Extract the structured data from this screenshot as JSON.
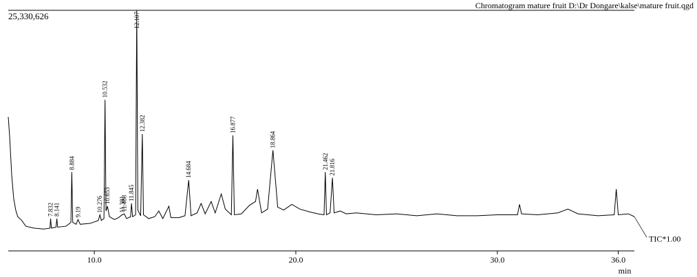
{
  "chart_data": {
    "type": "line",
    "title": "Chromatogram mature fruit D:\\Dr Dongare\\kalse\\mature fruit.qgd",
    "xlabel": "min",
    "xlim": [
      5.73,
      36.8
    ],
    "xticks": [
      {
        "value": 10,
        "label": "10.0"
      },
      {
        "value": 20,
        "label": "20.0"
      },
      {
        "value": 30,
        "label": "30.0"
      },
      {
        "value": 36,
        "label": "36.0"
      }
    ],
    "ylim": [
      0,
      25330626
    ],
    "yticks": [
      {
        "value": 25330626,
        "label": "25,330,626"
      }
    ],
    "series": [
      {
        "name": "TIC*1.00",
        "color": "#000000",
        "x": [
          5.73,
          5.8,
          5.9,
          6.0,
          6.1,
          6.2,
          6.4,
          6.6,
          7.0,
          7.5,
          7.8,
          7.832,
          7.87,
          8.1,
          8.141,
          8.18,
          8.6,
          8.84,
          8.884,
          8.93,
          9.1,
          9.19,
          9.3,
          9.8,
          10.2,
          10.276,
          10.35,
          10.48,
          10.532,
          10.58,
          10.653,
          10.75,
          11.0,
          11.2,
          11.381,
          11.488,
          11.6,
          11.8,
          11.845,
          11.9,
          12.05,
          12.107,
          12.16,
          12.3,
          12.382,
          12.44,
          12.7,
          13.0,
          13.2,
          13.4,
          13.7,
          13.8,
          14.2,
          14.5,
          14.684,
          14.8,
          15.1,
          15.3,
          15.5,
          15.8,
          16.0,
          16.3,
          16.5,
          16.8,
          16.877,
          16.95,
          17.3,
          17.7,
          18.0,
          18.1,
          18.3,
          18.6,
          18.864,
          19.1,
          19.4,
          19.8,
          20.2,
          20.7,
          21.1,
          21.4,
          21.462,
          21.52,
          21.7,
          21.816,
          21.9,
          22.2,
          22.5,
          23.0,
          24.0,
          25.0,
          26.0,
          27.0,
          28.0,
          29.0,
          30.0,
          31.0,
          31.1,
          31.2,
          32.0,
          33.0,
          33.5,
          34.0,
          35.0,
          35.8,
          35.9,
          36.0,
          36.5,
          36.8
        ],
        "values": [
          14100000,
          12000000,
          8000000,
          5500000,
          4300000,
          3600000,
          3200000,
          2600000,
          2400000,
          2300000,
          2400000,
          3400000,
          2400000,
          2500000,
          3400000,
          2500000,
          2600000,
          3000000,
          8300000,
          3000000,
          2800000,
          3300000,
          2800000,
          2900000,
          3200000,
          3800000,
          3200000,
          3400000,
          15900000,
          4200000,
          4700000,
          3600000,
          3300000,
          3500000,
          3800000,
          3900000,
          3400000,
          3600000,
          5000000,
          3600000,
          3800000,
          25330626,
          4300000,
          3700000,
          12300000,
          3800000,
          3400000,
          3600000,
          4200000,
          3400000,
          4700000,
          3500000,
          3500000,
          3700000,
          7450000,
          3700000,
          4000000,
          5000000,
          3900000,
          5200000,
          4000000,
          6000000,
          4400000,
          3800000,
          12160000,
          3800000,
          3900000,
          4800000,
          5200000,
          6500000,
          4000000,
          4400000,
          10600000,
          4600000,
          4300000,
          4900000,
          4400000,
          4100000,
          3900000,
          3800000,
          8300000,
          3800000,
          4000000,
          7700000,
          4000000,
          4200000,
          3900000,
          4000000,
          3800000,
          3900000,
          3700000,
          3900000,
          3700000,
          3700000,
          3800000,
          3800000,
          4900000,
          3900000,
          3800000,
          4000000,
          4400000,
          3900000,
          3700000,
          3800000,
          6500000,
          3800000,
          3900000,
          3600000
        ]
      }
    ],
    "peaks": {
      "x": [
        7.832,
        8.141,
        8.884,
        9.19,
        10.276,
        10.532,
        10.653,
        11.381,
        11.488,
        11.845,
        12.107,
        12.382,
        14.684,
        16.877,
        18.864,
        21.462,
        21.816
      ],
      "values": [
        3400000,
        3400000,
        8300000,
        3300000,
        3800000,
        15900000,
        4700000,
        3800000,
        3900000,
        5000000,
        25330626,
        12300000,
        7450000,
        12160000,
        10600000,
        8300000,
        7700000
      ]
    }
  }
}
